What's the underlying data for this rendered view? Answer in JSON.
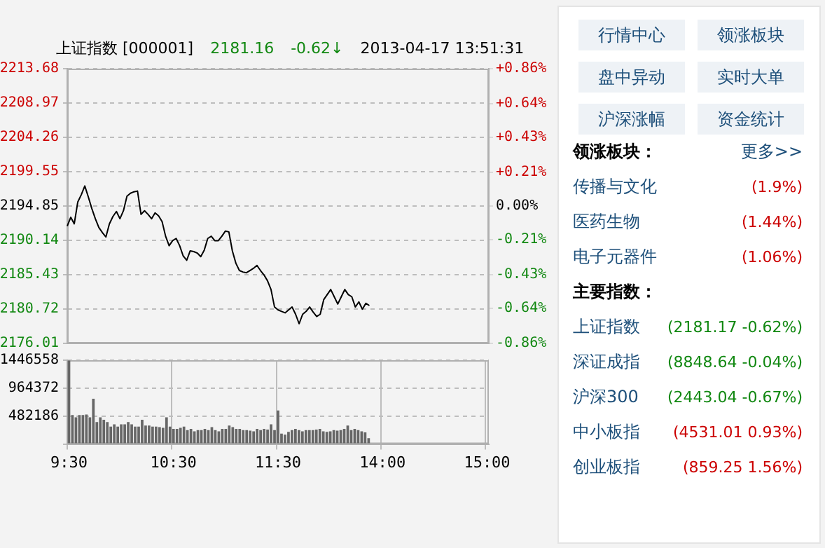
{
  "chart_data": [
    {
      "type": "line",
      "title": "上证指数 [000001]",
      "annotations": [
        "2181.16",
        "-0.62↓",
        "2013-04-17 13:51:31"
      ],
      "categories": [
        null,
        null,
        null,
        null,
        null,
        null,
        null,
        null,
        null,
        null,
        null,
        null,
        null,
        null,
        null,
        null,
        null,
        null,
        null,
        null,
        null,
        null,
        null,
        null,
        null,
        null,
        null,
        null,
        null,
        null,
        null,
        null,
        null,
        null,
        null,
        null,
        null,
        null,
        null,
        null,
        null,
        null,
        null,
        null,
        null,
        null,
        null,
        null,
        null,
        null,
        null,
        null,
        null,
        null,
        null,
        null,
        null,
        null,
        null,
        null,
        null,
        null,
        null,
        null,
        null,
        null,
        null,
        null,
        null,
        null,
        null,
        null,
        null,
        null,
        null,
        null,
        null,
        null,
        null,
        null,
        null,
        null,
        null,
        null,
        null,
        null,
        null,
        null,
        null,
        null,
        null,
        null,
        null,
        null,
        null,
        null,
        null,
        null,
        null,
        null,
        null,
        null,
        null,
        null,
        null,
        null,
        null,
        null,
        null,
        null,
        null,
        null,
        null,
        null,
        null,
        null,
        null,
        null,
        null,
        null,
        null
      ],
      "series": [
        {
          "color": "#000000",
          "values": [
            2192.1,
            2193.3,
            2192.4,
            2195.4,
            2196.4,
            2197.6,
            2196.1,
            2194.5,
            2193.1,
            2191.9,
            2191.2,
            2190.6,
            2192.4,
            2193.4,
            2194.1,
            2193.1,
            2194.2,
            2196.2,
            2196.6,
            2196.8,
            2196.9,
            2193.7,
            2194.2,
            2193.7,
            2193.1,
            2193.9,
            2193.5,
            2192.7,
            2190.7,
            2189.4,
            2190.1,
            2190.4,
            2189.4,
            2188.0,
            2187.4,
            2188.7,
            2188.6,
            2188.4,
            2187.9,
            2188.8,
            2190.4,
            2190.7,
            2190.1,
            2190.1,
            2190.7,
            2191.4,
            2191.3,
            2188.7,
            2187.0,
            2186.0,
            2185.8,
            2185.7,
            2186.0,
            2186.3,
            2186.7,
            2186.0,
            2185.4,
            2184.6,
            2183.4,
            2181.0,
            2180.6,
            2180.4,
            2180.2,
            2180.6,
            2181.0,
            2180.0,
            2178.7,
            2180.0,
            2180.4,
            2181.0,
            2180.3,
            2179.7,
            2180.0,
            2182.0,
            2182.7,
            2183.4,
            2182.4,
            2181.4,
            2182.4,
            2183.4,
            2182.7,
            2182.4,
            2181.0,
            2181.7,
            2180.7,
            2181.5,
            2181.2,
            null,
            null,
            null,
            null,
            null,
            null,
            null,
            null,
            null,
            null,
            null,
            null,
            null,
            null,
            null,
            null,
            null,
            null,
            null,
            null,
            null,
            null,
            null,
            null,
            null,
            null,
            null,
            null,
            null,
            null,
            null,
            null,
            null,
            null
          ]
        }
      ],
      "ylim": [
        2176.01,
        2213.68
      ],
      "yticks": [
        2176.01,
        2180.72,
        2185.43,
        2190.14,
        2194.85,
        2199.55,
        2204.26,
        2208.97,
        2213.68
      ],
      "y2lim": [
        -0.86,
        0.86
      ],
      "y2ticks": [
        {
          "value": -0.86,
          "label": "-0.86%"
        },
        {
          "value": -0.64,
          "label": "-0.64%"
        },
        {
          "value": -0.43,
          "label": "-0.43%"
        },
        {
          "value": -0.21,
          "label": "-0.21%"
        },
        {
          "value": 0,
          "label": "0.00%"
        },
        {
          "value": 0.21,
          "label": "+0.21%"
        },
        {
          "value": 0.43,
          "label": "+0.43%"
        },
        {
          "value": 0.64,
          "label": "+0.64%"
        },
        {
          "value": 0.86,
          "label": "+0.86%"
        }
      ],
      "grid": "y",
      "tick_labels": "y",
      "legend": false,
      "marker": "none",
      "line_style": "solid"
    },
    {
      "type": "bar",
      "categories": [
        "9:30",
        null,
        null,
        null,
        null,
        null,
        null,
        null,
        null,
        null,
        null,
        null,
        null,
        null,
        null,
        null,
        null,
        null,
        null,
        null,
        null,
        null,
        null,
        null,
        null,
        null,
        null,
        null,
        null,
        null,
        "10:30",
        null,
        null,
        null,
        null,
        null,
        null,
        null,
        null,
        null,
        null,
        null,
        null,
        null,
        null,
        null,
        null,
        null,
        null,
        null,
        null,
        null,
        null,
        null,
        null,
        null,
        null,
        null,
        null,
        null,
        "11:30",
        null,
        null,
        null,
        null,
        null,
        null,
        null,
        null,
        null,
        null,
        null,
        null,
        null,
        null,
        null,
        null,
        null,
        null,
        null,
        null,
        null,
        null,
        null,
        null,
        null,
        null,
        null,
        null,
        null,
        "14:00",
        null,
        null,
        null,
        null,
        null,
        null,
        null,
        null,
        null,
        null,
        null,
        null,
        null,
        null,
        null,
        null,
        null,
        null,
        null,
        null,
        null,
        null,
        null,
        null,
        null,
        null,
        null,
        null,
        null,
        "15:00"
      ],
      "values": [
        1440000,
        500000,
        460000,
        500000,
        500000,
        510000,
        460000,
        780000,
        380000,
        460000,
        420000,
        380000,
        300000,
        340000,
        300000,
        340000,
        340000,
        380000,
        340000,
        300000,
        300000,
        420000,
        320000,
        320000,
        300000,
        300000,
        290000,
        280000,
        460000,
        300000,
        260000,
        260000,
        280000,
        300000,
        240000,
        260000,
        220000,
        240000,
        240000,
        260000,
        240000,
        290000,
        240000,
        220000,
        260000,
        260000,
        320000,
        290000,
        260000,
        260000,
        240000,
        240000,
        230000,
        220000,
        260000,
        240000,
        260000,
        250000,
        340000,
        240000,
        580000,
        180000,
        160000,
        210000,
        240000,
        260000,
        240000,
        220000,
        240000,
        240000,
        240000,
        250000,
        260000,
        220000,
        210000,
        220000,
        240000,
        230000,
        240000,
        260000,
        320000,
        240000,
        260000,
        240000,
        220000,
        200000,
        100000,
        null,
        null,
        null,
        null,
        null,
        null,
        null,
        null,
        null,
        null,
        null,
        null,
        null,
        null,
        null,
        null,
        null,
        null,
        null,
        null,
        null,
        null,
        null,
        null,
        null,
        null,
        null,
        null,
        null,
        null,
        null,
        null,
        null,
        null
      ],
      "color": "#666666",
      "ylim": [
        0,
        1446558
      ],
      "yticks": [
        {
          "value": 0,
          "label": null
        },
        482186,
        964372,
        1446558
      ],
      "grid": true,
      "legend": false
    },
    {
      "type": "other",
      "annotations": [
        "行情中心",
        "领涨板块",
        "盘中异动",
        "实时大单",
        "沪深涨幅",
        "资金统计"
      ]
    },
    {
      "type": "other",
      "title": "领涨板块：",
      "subtitle": "更多>>",
      "categories": [
        "传播与文化",
        "医药生物",
        "电子元器件"
      ],
      "values": [
        1.9,
        1.44,
        1.06
      ],
      "value_labels": [
        "(1.9%)",
        "(1.44%)",
        "(1.06%)"
      ]
    },
    {
      "type": "other",
      "title": "主要指数：",
      "categories": [
        "上证指数",
        "深证成指",
        "沪深300",
        "中小板指",
        "创业板指"
      ],
      "values": [
        -0.62,
        -0.04,
        -0.67,
        0.93,
        1.56
      ],
      "value_labels": [
        "(2181.17 -0.62%)",
        "(8848.64 -0.04%)",
        "(2443.04 -0.67%)",
        "(4531.01 0.93%)",
        "(859.25 1.56%)"
      ]
    }
  ]
}
